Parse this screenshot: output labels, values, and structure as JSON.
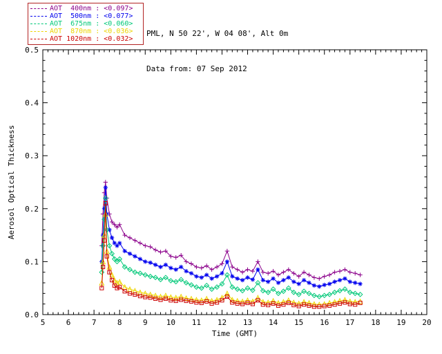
{
  "header": {
    "location_line": "PML, N 50 22', W 04 08', Alt 0m",
    "date_line": "Data from: 07 Sep 2012"
  },
  "legend": {
    "items": [
      {
        "label": "AOT  400nm : <0.097>"
      },
      {
        "label": "AOT  500nm : <0.077>"
      },
      {
        "label": "AOT  675nm : <0.060>"
      },
      {
        "label": "AOT  870nm : <0.036>"
      },
      {
        "label": "AOT 1020nm : <0.032>"
      }
    ]
  },
  "colors": {
    "axis": "#000000",
    "background": "#ffffff",
    "legend_border": "#b22222"
  },
  "chart_data": {
    "type": "line",
    "title": "",
    "xlabel": "Time (GMT)",
    "ylabel": "Aerosol Optical Thickness",
    "xlim": [
      5,
      20
    ],
    "ylim": [
      0,
      0.5
    ],
    "x_ticks": [
      5,
      6,
      7,
      8,
      9,
      10,
      11,
      12,
      13,
      14,
      15,
      16,
      17,
      18,
      19,
      20
    ],
    "y_ticks": [
      0,
      0.1,
      0.2,
      0.3,
      0.4,
      0.5
    ],
    "y_tick_labels": [
      "0.0",
      "0.1",
      "0.2",
      "0.3",
      "0.4",
      "0.5"
    ],
    "x_minor_step": 0.2,
    "y_minor_step": 0.02,
    "grid": false,
    "legend_position": "top-left",
    "x": [
      7.3,
      7.35,
      7.4,
      7.45,
      7.5,
      7.6,
      7.7,
      7.8,
      7.9,
      8.0,
      8.2,
      8.4,
      8.6,
      8.8,
      9.0,
      9.2,
      9.4,
      9.6,
      9.8,
      10.0,
      10.2,
      10.4,
      10.6,
      10.8,
      11.0,
      11.2,
      11.4,
      11.6,
      11.8,
      12.0,
      12.2,
      12.4,
      12.6,
      12.8,
      13.0,
      13.2,
      13.4,
      13.6,
      13.8,
      14.0,
      14.2,
      14.4,
      14.6,
      14.8,
      15.0,
      15.2,
      15.4,
      15.6,
      15.8,
      16.0,
      16.2,
      16.4,
      16.6,
      16.8,
      17.0,
      17.2,
      17.4
    ],
    "series": [
      {
        "name": "AOT 400nm",
        "wavelength_nm": 400,
        "mean_label": "<0.097>",
        "color": "#8B008B",
        "marker": "plus",
        "values": [
          0.13,
          0.19,
          0.23,
          0.25,
          0.22,
          0.19,
          0.175,
          0.17,
          0.165,
          0.17,
          0.15,
          0.145,
          0.14,
          0.135,
          0.13,
          0.128,
          0.122,
          0.118,
          0.12,
          0.11,
          0.108,
          0.112,
          0.1,
          0.096,
          0.09,
          0.088,
          0.092,
          0.085,
          0.09,
          0.096,
          0.12,
          0.09,
          0.085,
          0.08,
          0.085,
          0.082,
          0.1,
          0.08,
          0.078,
          0.082,
          0.075,
          0.08,
          0.085,
          0.078,
          0.072,
          0.08,
          0.075,
          0.07,
          0.068,
          0.072,
          0.075,
          0.08,
          0.082,
          0.085,
          0.08,
          0.078,
          0.075
        ]
      },
      {
        "name": "AOT 500nm",
        "wavelength_nm": 500,
        "mean_label": "<0.077>",
        "color": "#0000EE",
        "marker": "asterisk",
        "values": [
          0.1,
          0.15,
          0.2,
          0.24,
          0.19,
          0.16,
          0.145,
          0.135,
          0.13,
          0.135,
          0.12,
          0.115,
          0.11,
          0.105,
          0.1,
          0.098,
          0.094,
          0.09,
          0.094,
          0.088,
          0.085,
          0.09,
          0.082,
          0.078,
          0.072,
          0.07,
          0.075,
          0.068,
          0.072,
          0.078,
          0.1,
          0.072,
          0.068,
          0.065,
          0.07,
          0.066,
          0.085,
          0.065,
          0.062,
          0.068,
          0.06,
          0.065,
          0.07,
          0.062,
          0.058,
          0.065,
          0.06,
          0.055,
          0.053,
          0.056,
          0.058,
          0.062,
          0.065,
          0.068,
          0.062,
          0.06,
          0.058
        ]
      },
      {
        "name": "AOT 675nm",
        "wavelength_nm": 675,
        "mean_label": "<0.060>",
        "color": "#00C878",
        "marker": "diamond",
        "values": [
          0.08,
          0.13,
          0.18,
          0.22,
          0.16,
          0.13,
          0.115,
          0.105,
          0.1,
          0.105,
          0.09,
          0.085,
          0.08,
          0.078,
          0.075,
          0.072,
          0.07,
          0.066,
          0.07,
          0.064,
          0.062,
          0.066,
          0.06,
          0.056,
          0.052,
          0.05,
          0.055,
          0.048,
          0.052,
          0.058,
          0.075,
          0.052,
          0.048,
          0.045,
          0.05,
          0.046,
          0.06,
          0.045,
          0.042,
          0.048,
          0.04,
          0.044,
          0.05,
          0.042,
          0.038,
          0.044,
          0.04,
          0.036,
          0.034,
          0.036,
          0.038,
          0.042,
          0.045,
          0.048,
          0.042,
          0.04,
          0.038
        ]
      },
      {
        "name": "AOT 870nm",
        "wavelength_nm": 870,
        "mean_label": "<0.036>",
        "color": "#EDD400",
        "marker": "triangle",
        "values": [
          0.06,
          0.1,
          0.15,
          0.19,
          0.12,
          0.09,
          0.075,
          0.065,
          0.06,
          0.062,
          0.052,
          0.048,
          0.045,
          0.042,
          0.04,
          0.038,
          0.036,
          0.034,
          0.036,
          0.033,
          0.032,
          0.034,
          0.031,
          0.03,
          0.028,
          0.027,
          0.03,
          0.026,
          0.028,
          0.032,
          0.04,
          0.028,
          0.026,
          0.025,
          0.027,
          0.025,
          0.032,
          0.024,
          0.023,
          0.026,
          0.022,
          0.024,
          0.027,
          0.023,
          0.021,
          0.024,
          0.022,
          0.02,
          0.019,
          0.02,
          0.022,
          0.024,
          0.026,
          0.028,
          0.025,
          0.024,
          0.025
        ]
      },
      {
        "name": "AOT 1020nm",
        "wavelength_nm": 1020,
        "mean_label": "<0.032>",
        "color": "#CC0000",
        "marker": "square",
        "values": [
          0.05,
          0.09,
          0.14,
          0.21,
          0.11,
          0.08,
          0.065,
          0.055,
          0.05,
          0.052,
          0.044,
          0.04,
          0.038,
          0.035,
          0.033,
          0.032,
          0.03,
          0.028,
          0.03,
          0.027,
          0.026,
          0.028,
          0.026,
          0.025,
          0.023,
          0.022,
          0.025,
          0.021,
          0.023,
          0.027,
          0.034,
          0.023,
          0.021,
          0.02,
          0.022,
          0.02,
          0.027,
          0.019,
          0.018,
          0.021,
          0.017,
          0.019,
          0.022,
          0.018,
          0.016,
          0.019,
          0.017,
          0.015,
          0.015,
          0.016,
          0.017,
          0.019,
          0.021,
          0.023,
          0.02,
          0.019,
          0.022
        ]
      }
    ]
  }
}
